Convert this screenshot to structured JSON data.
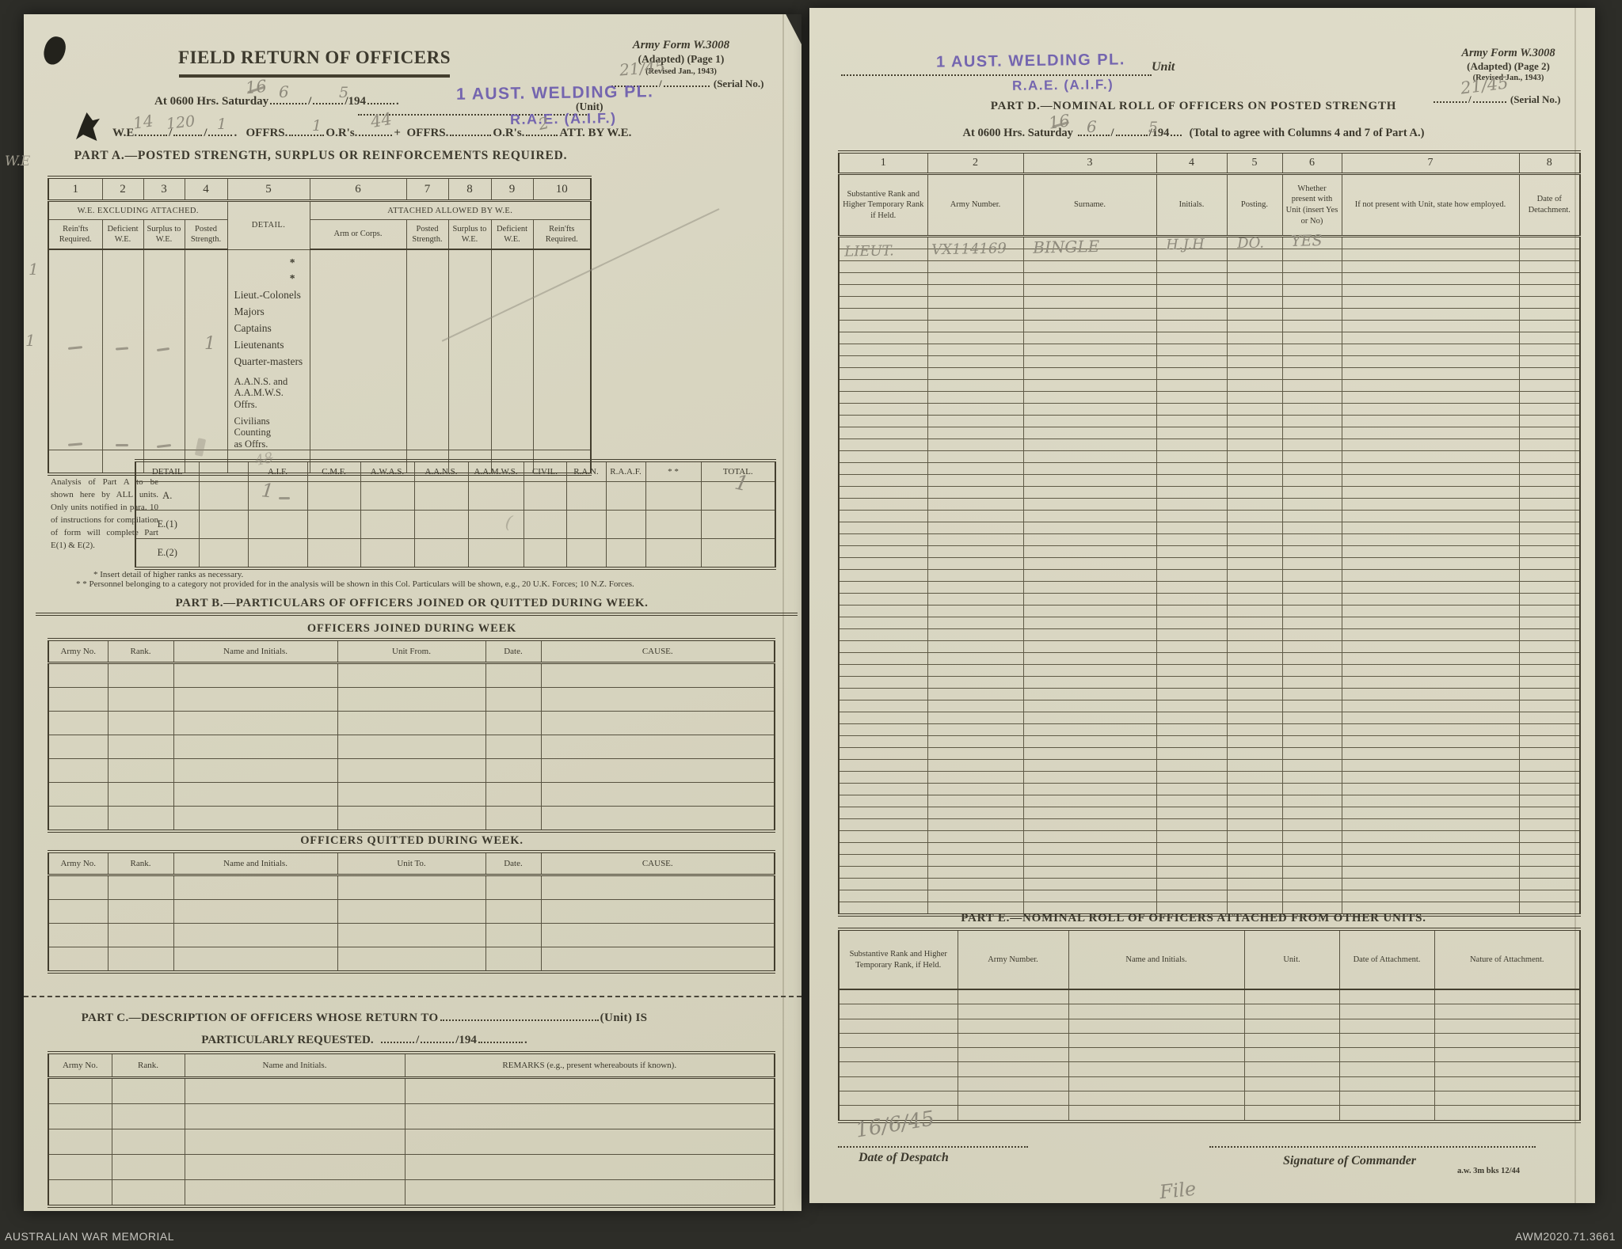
{
  "glyphs": {
    "slash": "/",
    "plus": "+",
    "period": "."
  },
  "archive_bar": {
    "left": "AUSTRALIAN WAR MEMORIAL",
    "right": "AWM2020.71.3661"
  },
  "page1": {
    "title": "FIELD RETURN OF OFFICERS",
    "form_ref": {
      "l1": "Army Form W.3008",
      "l2": "(Adapted)  (Page 1)",
      "l3": "(Revised Jan., 1943)",
      "serial_label": "(Serial No.)",
      "serial_hw": "21/45"
    },
    "date_line": {
      "prefix": "At 0600  Hrs.  Saturday",
      "year": "/194",
      "hw_day": "16",
      "hw_month": "6",
      "hw_year": "5"
    },
    "unit_stamp": {
      "line1": "1 AUST. WELDING PL.",
      "line2": "R.A.E. (A.I.F.)",
      "unit_label": "(Unit)"
    },
    "we_line": {
      "we": "W.E.",
      "offrs": "OFFRS.",
      "ors": "O.R's.",
      "plus": "+",
      "offrs2": "OFFRS.",
      "ors2": "O.R's.",
      "att": "ATT. BY W.E.",
      "hw_1": "14",
      "hw_2": "120",
      "hw_3": "1",
      "hw_offrs": "1",
      "hw_ors": "44",
      "hw_ors2": "2",
      "margin_note": "W.E"
    },
    "partA": {
      "heading": "PART A.—POSTED STRENGTH, SURPLUS OR REINFORCEMENTS REQUIRED.",
      "col_numbers": [
        "1",
        "2",
        "3",
        "4",
        "5",
        "6",
        "7",
        "8",
        "9",
        "10"
      ],
      "group_left": "W.E. EXCLUDING ATTACHED.",
      "detail_header": "DETAIL.",
      "group_right": "ATTACHED ALLOWED BY W.E.",
      "sub_headers": [
        "Rein'fts Required.",
        "Deficient W.E.",
        "Surplus to W.E.",
        "Posted Strength.",
        "Arm or Corps.",
        "Posted Strength.",
        "Surplus to W.E.",
        "Deficient W.E.",
        "Rein'fts Required."
      ],
      "detail_rows": [
        "*",
        "*",
        "Lieut.-Colonels",
        "Majors",
        "Captains",
        "Lieutenants",
        "Quarter-masters",
        "A.A.N.S.  and\nA.A.M.W.S.  Offrs.",
        "Civilians  Counting\nas  Offrs."
      ],
      "hw": {
        "margin_a": "1",
        "margin_b": "1",
        "lieutenants_posted": "1"
      }
    },
    "analysis": {
      "note": "Analysis of Part A to be shown here by ALL units. Only units notified in para. 10 of instructions for compilation of form will complete Part E(1) & E(2).",
      "detail_header": "DETAIL",
      "row_labels": [
        "A.",
        "E.(1)",
        "E.(2)"
      ],
      "columns": [
        "A.I.F.",
        "C.M.F.",
        "A.W.A.S.",
        "A.A.N.S.",
        "A.A.M.W.S.",
        "CIVIL.",
        "R.A.N.",
        "R.A.A.F.",
        "* *",
        "TOTAL."
      ],
      "hw": {
        "aif_a": "1",
        "total_a": "1",
        "scribble": "48"
      },
      "footnote1": "* Insert detail of higher ranks as necessary.",
      "footnote2": "* * Personnel belonging to a category not provided for in the analysis will be shown in this Col.  Particulars will be shown, e.g., 20 U.K. Forces; 10 N.Z. Forces."
    },
    "partB": {
      "heading": "PART B.—PARTICULARS OF OFFICERS JOINED OR QUITTED DURING WEEK.",
      "joined_title": "OFFICERS JOINED DURING WEEK",
      "joined_headers": [
        "Army No.",
        "Rank.",
        "Name and Initials.",
        "Unit From.",
        "Date.",
        "CAUSE."
      ],
      "quitted_title": "OFFICERS QUITTED DURING WEEK.",
      "quitted_headers": [
        "Army No.",
        "Rank.",
        "Name and Initials.",
        "Unit To.",
        "Date.",
        "CAUSE."
      ]
    },
    "partC": {
      "heading1": "PART C.—DESCRIPTION OF OFFICERS WHOSE RETURN TO",
      "unit_is": "(Unit)  IS",
      "heading2": "PARTICULARLY REQUESTED.",
      "year": "/194",
      "headers": [
        "Army No.",
        "Rank.",
        "Name and Initials.",
        "REMARKS  (e.g.,  present  whereabouts  if  known)."
      ]
    }
  },
  "page2": {
    "unit_stamp": {
      "line1": "1 AUST. WELDING PL.",
      "line2": "R.A.E. (A.I.F.)",
      "unit_label": "Unit"
    },
    "form_ref": {
      "l1": "Army Form W.3008",
      "l2": "(Adapted)  (Page 2)",
      "l3": "(Revised Jan., 1943)",
      "serial_label": "(Serial No.)",
      "serial_hw": "21/45"
    },
    "partD": {
      "heading": "PART D.—NOMINAL ROLL OF OFFICERS ON POSTED STRENGTH",
      "date_prefix": "At 0600 Hrs. Saturday",
      "date_year": "/194",
      "date_note": "(Total to agree with Columns 4 and 7 of Part A.)",
      "hw_day": "16",
      "hw_month": "6",
      "hw_year": "5",
      "col_numbers": [
        "1",
        "2",
        "3",
        "4",
        "5",
        "6",
        "7",
        "8"
      ],
      "headers": [
        "Substantive Rank and Higher Temporary Rank if Held.",
        "Army Number.",
        "Surname.",
        "Initials.",
        "Posting.",
        "Whether present with Unit (insert Yes or No)",
        "If not present with Unit, state how employed.",
        "Date of Detachment."
      ],
      "entry": {
        "rank": "LIEUT.",
        "army_number": "VX114169",
        "surname": "BINGLE",
        "initials": "H.J.H",
        "posting": "DO.",
        "present": "YES"
      }
    },
    "partE": {
      "heading": "PART E.—NOMINAL ROLL OF OFFICERS ATTACHED FROM OTHER UNITS.",
      "headers": [
        "Substantive Rank and Higher Temporary Rank, if Held.",
        "Army Number.",
        "Name and Initials.",
        "Unit.",
        "Date of Attachment.",
        "Nature of Attachment."
      ]
    },
    "footer": {
      "despatch_hw": "16/6/45",
      "despatch_label": "Date of Despatch",
      "signature_label": "Signature of Commander",
      "print_code": "a.w. 3m bks 12/44",
      "file_note": "File"
    }
  }
}
